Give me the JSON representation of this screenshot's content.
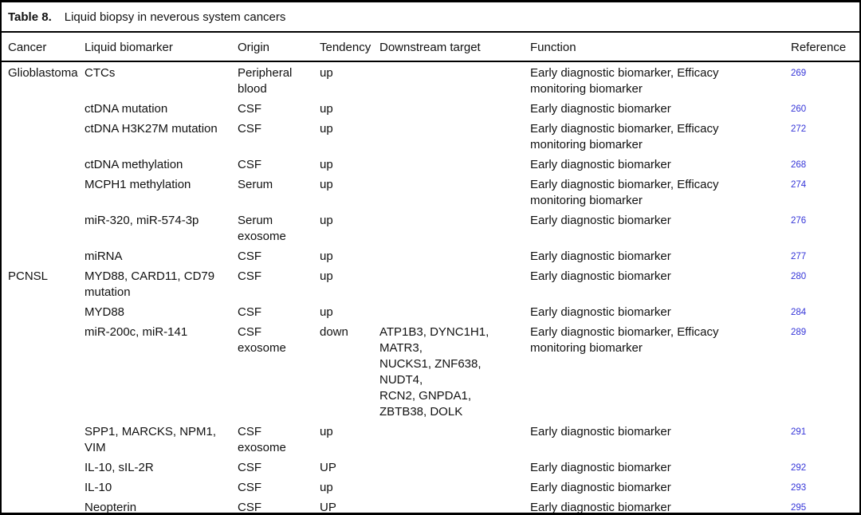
{
  "table": {
    "label": "Table 8.",
    "title": "Liquid biopsy in neverous system cancers",
    "columns": [
      "Cancer",
      "Liquid biomarker",
      "Origin",
      "Tendency",
      "Downstream target",
      "Function",
      "Reference"
    ],
    "rows": [
      {
        "cancer": "Glioblastoma",
        "biomarker": "CTCs",
        "origin": "Peripheral\nblood",
        "tendency": "up",
        "target": "",
        "func": "Early diagnostic biomarker, Efficacy\nmonitoring biomarker",
        "ref": "269"
      },
      {
        "cancer": "",
        "biomarker": "ctDNA mutation",
        "origin": "CSF",
        "tendency": "up",
        "target": "",
        "func": "Early diagnostic biomarker",
        "ref": "260"
      },
      {
        "cancer": "",
        "biomarker": "ctDNA H3K27M mutation",
        "origin": "CSF",
        "tendency": "up",
        "target": "",
        "func": "Early diagnostic biomarker, Efficacy\nmonitoring biomarker",
        "ref": "272"
      },
      {
        "cancer": "",
        "biomarker": "ctDNA methylation",
        "origin": "CSF",
        "tendency": "up",
        "target": "",
        "func": "Early diagnostic biomarker",
        "ref": "268"
      },
      {
        "cancer": "",
        "biomarker": "MCPH1 methylation",
        "origin": "Serum",
        "tendency": "up",
        "target": "",
        "func": "Early diagnostic biomarker, Efficacy\nmonitoring biomarker",
        "ref": "274"
      },
      {
        "cancer": "",
        "biomarker": "miR-320, miR-574-3p",
        "origin": "Serum\nexosome",
        "tendency": "up",
        "target": "",
        "func": "Early diagnostic biomarker",
        "ref": "276"
      },
      {
        "cancer": "",
        "biomarker": "miRNA",
        "origin": "CSF",
        "tendency": "up",
        "target": "",
        "func": "Early diagnostic biomarker",
        "ref": "277"
      },
      {
        "cancer": "PCNSL",
        "biomarker": "MYD88, CARD11, CD79\nmutation",
        "origin": "CSF",
        "tendency": "up",
        "target": "",
        "func": "Early diagnostic biomarker",
        "ref": "280"
      },
      {
        "cancer": "",
        "biomarker": "MYD88",
        "origin": "CSF",
        "tendency": "up",
        "target": "",
        "func": "Early diagnostic biomarker",
        "ref": "284"
      },
      {
        "cancer": "",
        "biomarker": "miR-200c, miR-141",
        "origin": "CSF\nexosome",
        "tendency": "down",
        "target": "ATP1B3, DYNC1H1,\nMATR3,\nNUCKS1, ZNF638,\nNUDT4,\nRCN2, GNPDA1,\nZBTB38, DOLK",
        "func": "Early diagnostic biomarker, Efficacy\nmonitoring biomarker",
        "ref": "289"
      },
      {
        "cancer": "",
        "biomarker": "SPP1, MARCKS, NPM1,\nVIM",
        "origin": "CSF\nexosome",
        "tendency": "up",
        "target": "",
        "func": "Early diagnostic biomarker",
        "ref": "291"
      },
      {
        "cancer": "",
        "biomarker": "IL-10, sIL-2R",
        "origin": "CSF",
        "tendency": "UP",
        "target": "",
        "func": "Early diagnostic biomarker",
        "ref": "292"
      },
      {
        "cancer": "",
        "biomarker": "IL-10",
        "origin": "CSF",
        "tendency": "up",
        "target": "",
        "func": "Early diagnostic biomarker",
        "ref": "293"
      },
      {
        "cancer": "",
        "biomarker": "Neopterin",
        "origin": "CSF",
        "tendency": "UP",
        "target": "",
        "func": "Early diagnostic biomarker",
        "ref": "295"
      }
    ]
  },
  "colors": {
    "text": "#111111",
    "border": "#000000",
    "reference_link": "#3535d8",
    "background": "#ffffff"
  }
}
